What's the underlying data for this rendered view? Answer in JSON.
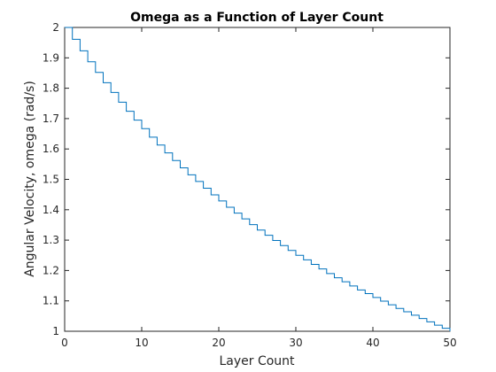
{
  "chart_data": {
    "type": "line",
    "style": "stairs",
    "title": "Omega as a Function of Layer Count",
    "xlabel": "Layer Count",
    "ylabel": "Angular Velocity, omega (rad/s)",
    "xlim": [
      0,
      50
    ],
    "ylim": [
      1,
      2
    ],
    "xticks": [
      0,
      10,
      20,
      30,
      40,
      50
    ],
    "xtick_labels": [
      "0",
      "10",
      "20",
      "30",
      "40",
      "50"
    ],
    "yticks": [
      1,
      1.1,
      1.2,
      1.3,
      1.4,
      1.5,
      1.6,
      1.7,
      1.8,
      1.9,
      2
    ],
    "ytick_labels": [
      "1",
      "1.1",
      "1.2",
      "1.3",
      "1.4",
      "1.5",
      "1.6",
      "1.7",
      "1.8",
      "1.9",
      "2"
    ],
    "grid": false,
    "series": [
      {
        "color": "#0072bd",
        "x": [
          0,
          1,
          2,
          3,
          4,
          5,
          6,
          7,
          8,
          9,
          10,
          11,
          12,
          13,
          14,
          15,
          16,
          17,
          18,
          19,
          20,
          21,
          22,
          23,
          24,
          25,
          26,
          27,
          28,
          29,
          30,
          31,
          32,
          33,
          34,
          35,
          36,
          37,
          38,
          39,
          40,
          41,
          42,
          43,
          44,
          45,
          46,
          47,
          48,
          49,
          50
        ],
        "y": [
          2.0,
          1.961,
          1.923,
          1.887,
          1.852,
          1.818,
          1.786,
          1.754,
          1.724,
          1.695,
          1.667,
          1.639,
          1.613,
          1.587,
          1.562,
          1.538,
          1.515,
          1.493,
          1.471,
          1.449,
          1.429,
          1.408,
          1.389,
          1.37,
          1.351,
          1.333,
          1.316,
          1.299,
          1.282,
          1.266,
          1.25,
          1.235,
          1.22,
          1.205,
          1.19,
          1.176,
          1.163,
          1.149,
          1.136,
          1.124,
          1.111,
          1.099,
          1.087,
          1.075,
          1.064,
          1.053,
          1.042,
          1.031,
          1.02,
          1.01,
          1.0
        ]
      }
    ]
  }
}
